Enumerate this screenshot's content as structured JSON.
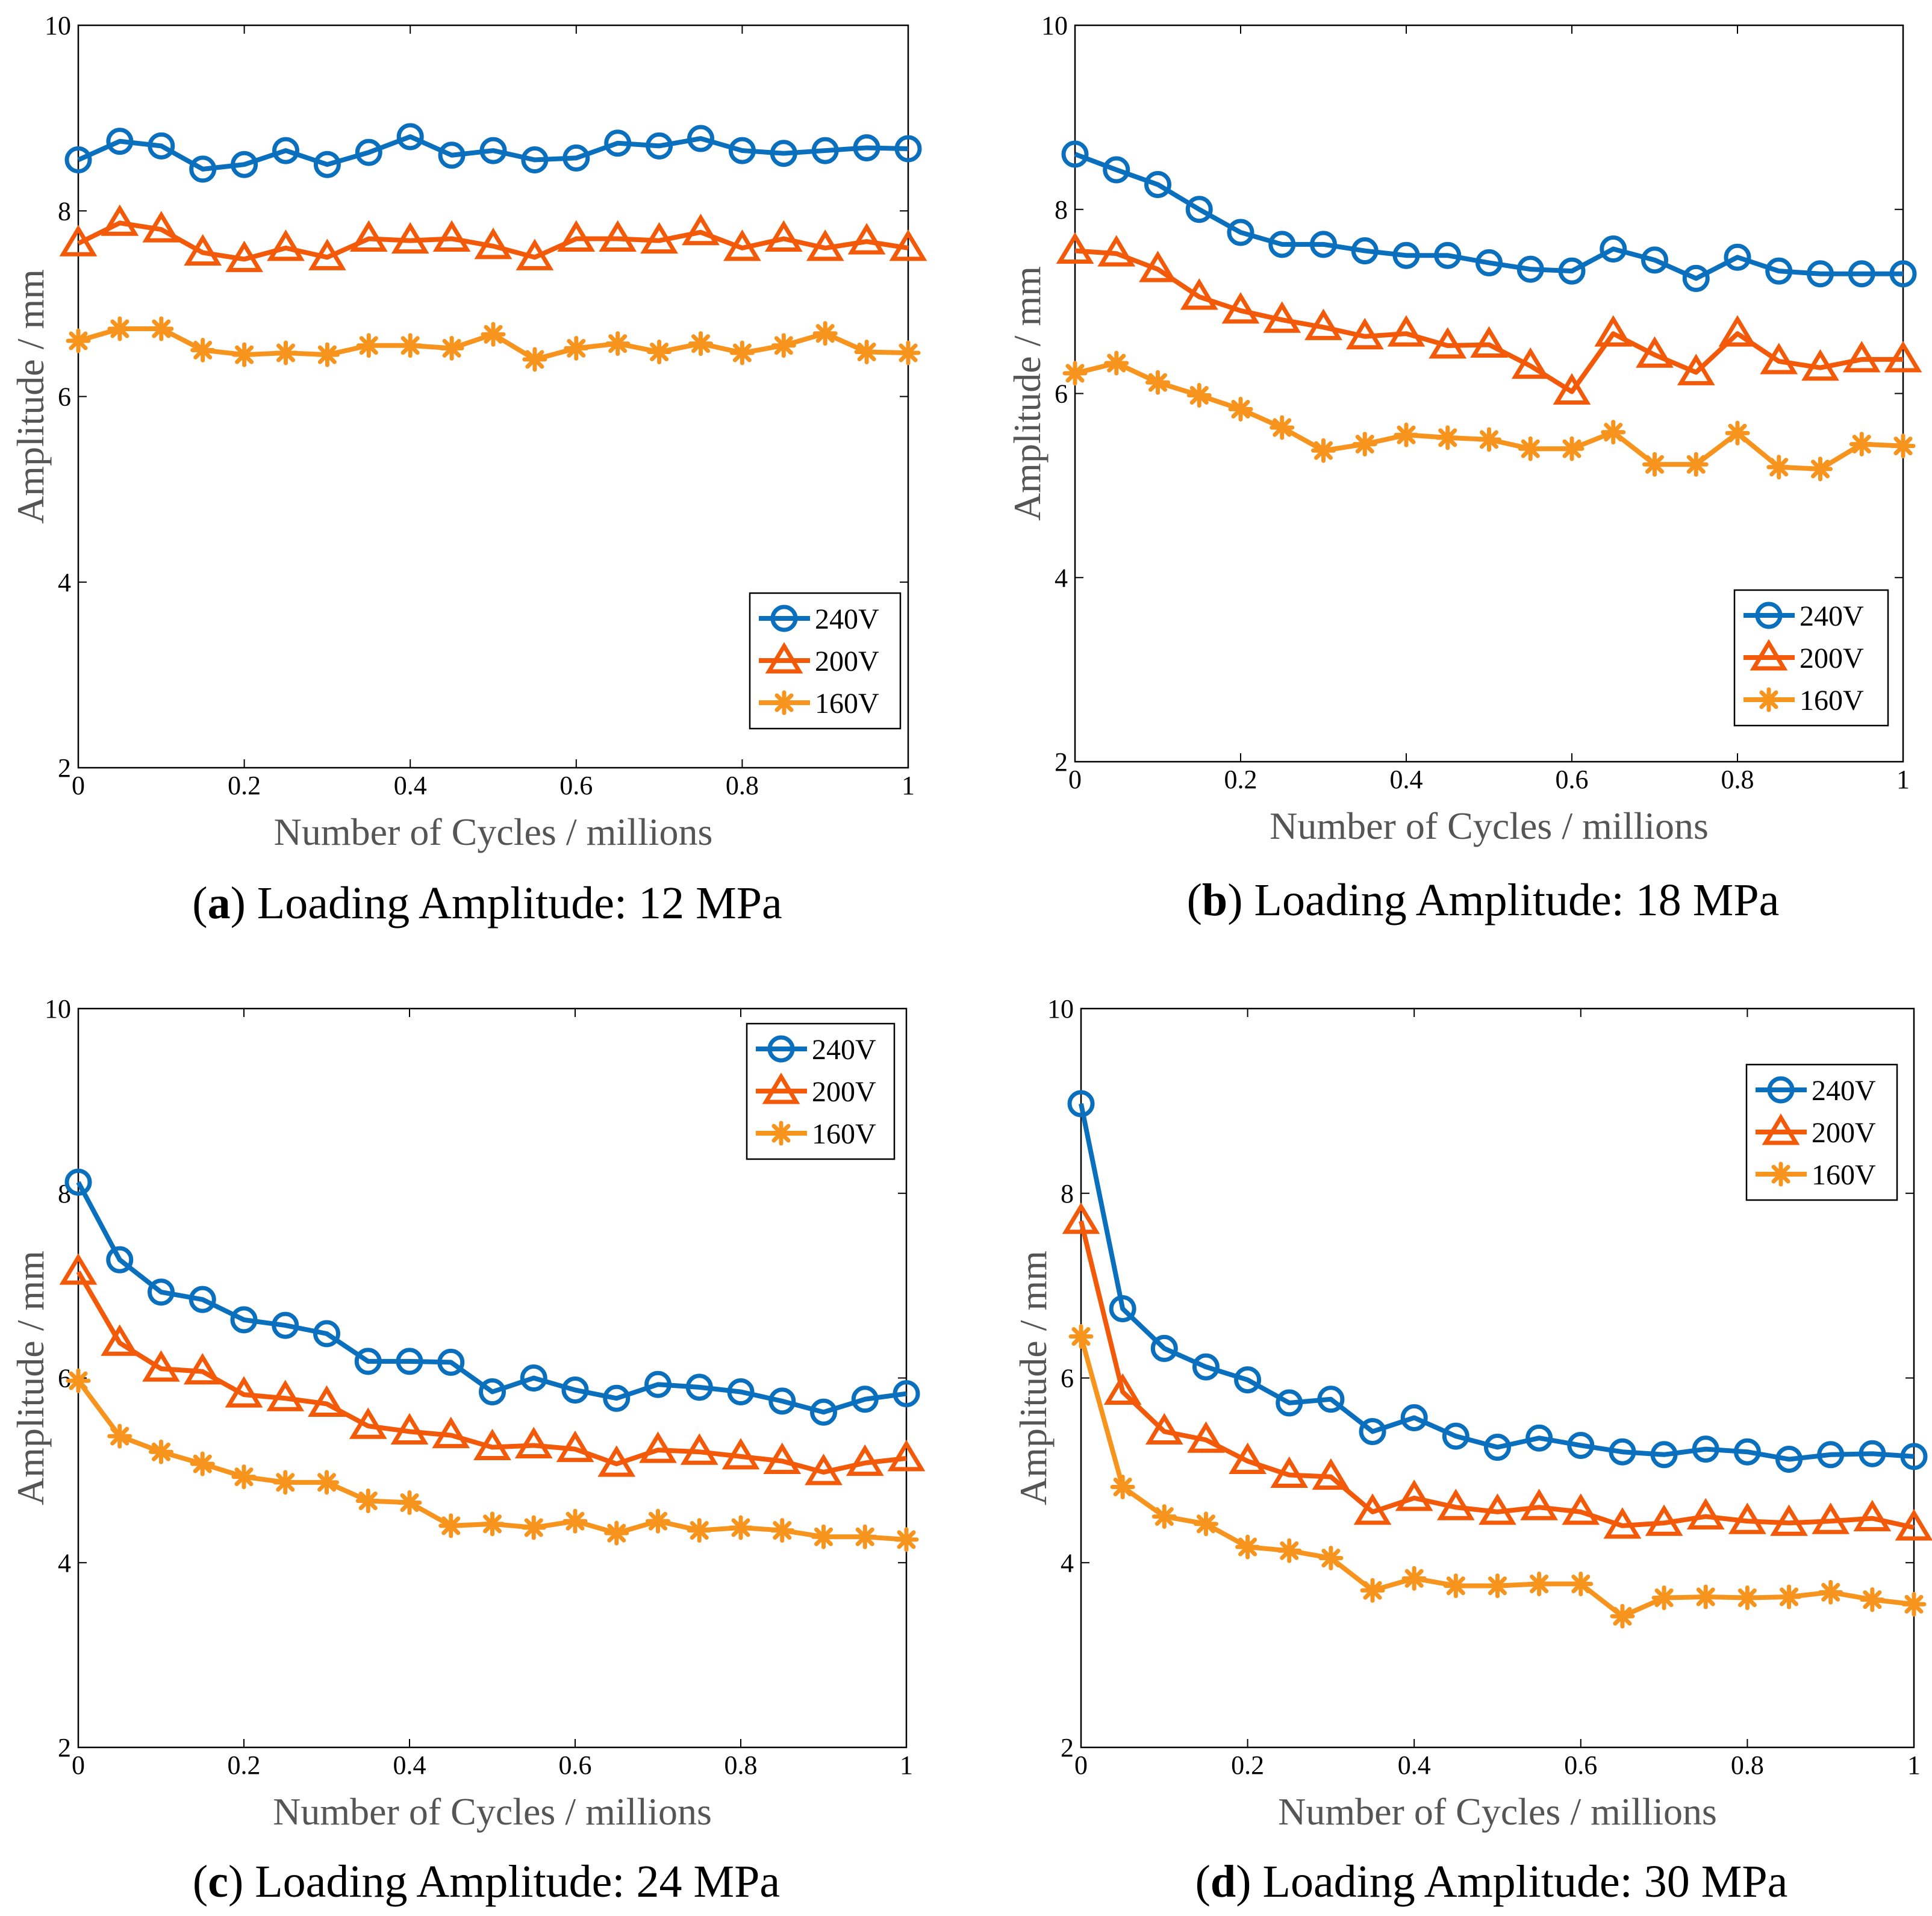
{
  "colors": {
    "240V": "#0a6fbd",
    "200V": "#f25a0a",
    "160V": "#f7941d"
  },
  "chart_data": [
    {
      "type": "line",
      "id": "a",
      "caption_letter": "a",
      "caption_text": "Loading Amplitude: 12 MPa",
      "xlabel": "Number of Cycles / millions",
      "ylabel": "Amplitude / mm",
      "xlim": [
        0,
        1
      ],
      "ylim": [
        2,
        10
      ],
      "xticks": [
        "0",
        "0.2",
        "0.4",
        "0.6",
        "0.8",
        "1"
      ],
      "yticks": [
        "2",
        "4",
        "6",
        "8",
        "10"
      ],
      "legend_position": "bottom-right",
      "x": [
        0,
        0.05,
        0.1,
        0.15,
        0.2,
        0.25,
        0.3,
        0.35,
        0.4,
        0.45,
        0.5,
        0.55,
        0.6,
        0.65,
        0.7,
        0.75,
        0.8,
        0.85,
        0.9,
        0.95,
        1
      ],
      "series": [
        {
          "name": "240V",
          "marker": "circle",
          "values": [
            8.55,
            8.75,
            8.7,
            8.45,
            8.5,
            8.65,
            8.5,
            8.63,
            8.8,
            8.6,
            8.65,
            8.55,
            8.57,
            8.73,
            8.7,
            8.78,
            8.65,
            8.62,
            8.65,
            8.68,
            8.67
          ]
        },
        {
          "name": "200V",
          "marker": "triangle",
          "values": [
            7.65,
            7.87,
            7.8,
            7.55,
            7.48,
            7.6,
            7.5,
            7.7,
            7.68,
            7.7,
            7.62,
            7.5,
            7.7,
            7.7,
            7.68,
            7.77,
            7.6,
            7.7,
            7.6,
            7.67,
            7.6
          ]
        },
        {
          "name": "160V",
          "marker": "asterisk",
          "values": [
            6.6,
            6.73,
            6.73,
            6.5,
            6.45,
            6.47,
            6.45,
            6.55,
            6.55,
            6.52,
            6.67,
            6.4,
            6.52,
            6.57,
            6.48,
            6.57,
            6.47,
            6.55,
            6.68,
            6.48,
            6.47
          ]
        }
      ]
    },
    {
      "type": "line",
      "id": "b",
      "caption_letter": "b",
      "caption_text": "Loading Amplitude: 18 MPa",
      "xlabel": "Number of Cycles / millions",
      "ylabel": "Amplitude / mm",
      "xlim": [
        0,
        1
      ],
      "ylim": [
        2,
        10
      ],
      "xticks": [
        "0",
        "0.2",
        "0.4",
        "0.6",
        "0.8",
        "1"
      ],
      "yticks": [
        "2",
        "4",
        "6",
        "8",
        "10"
      ],
      "legend_position": "bottom-right",
      "x": [
        0,
        0.05,
        0.1,
        0.15,
        0.2,
        0.25,
        0.3,
        0.35,
        0.4,
        0.45,
        0.5,
        0.55,
        0.6,
        0.65,
        0.7,
        0.75,
        0.8,
        0.85,
        0.9,
        0.95,
        1
      ],
      "series": [
        {
          "name": "240V",
          "marker": "circle",
          "values": [
            8.6,
            8.43,
            8.27,
            8.0,
            7.75,
            7.62,
            7.62,
            7.55,
            7.5,
            7.5,
            7.42,
            7.35,
            7.33,
            7.57,
            7.45,
            7.25,
            7.48,
            7.33,
            7.3,
            7.3,
            7.3
          ]
        },
        {
          "name": "200V",
          "marker": "triangle",
          "values": [
            7.55,
            7.52,
            7.35,
            7.05,
            6.9,
            6.8,
            6.72,
            6.62,
            6.65,
            6.52,
            6.53,
            6.3,
            6.02,
            6.65,
            6.42,
            6.23,
            6.65,
            6.35,
            6.28,
            6.37,
            6.37
          ]
        },
        {
          "name": "160V",
          "marker": "asterisk",
          "values": [
            6.22,
            6.33,
            6.12,
            5.98,
            5.83,
            5.63,
            5.38,
            5.45,
            5.55,
            5.52,
            5.5,
            5.4,
            5.4,
            5.58,
            5.23,
            5.23,
            5.57,
            5.2,
            5.18,
            5.45,
            5.43
          ]
        }
      ]
    },
    {
      "type": "line",
      "id": "c",
      "caption_letter": "c",
      "caption_text": "Loading Amplitude: 24 MPa",
      "xlabel": "Number of Cycles / millions",
      "ylabel": "Amplitude / mm",
      "xlim": [
        0,
        1
      ],
      "ylim": [
        2,
        10
      ],
      "xticks": [
        "0",
        "0.2",
        "0.4",
        "0.6",
        "0.8",
        "1"
      ],
      "yticks": [
        "2",
        "4",
        "6",
        "8",
        "10"
      ],
      "legend_position": "top-right",
      "x": [
        0,
        0.05,
        0.1,
        0.15,
        0.2,
        0.25,
        0.3,
        0.35,
        0.4,
        0.45,
        0.5,
        0.55,
        0.6,
        0.65,
        0.7,
        0.75,
        0.8,
        0.85,
        0.9,
        0.95,
        1
      ],
      "series": [
        {
          "name": "240V",
          "marker": "circle",
          "values": [
            8.12,
            7.28,
            6.93,
            6.85,
            6.63,
            6.57,
            6.48,
            6.18,
            6.18,
            6.17,
            5.85,
            6.0,
            5.87,
            5.78,
            5.93,
            5.9,
            5.85,
            5.75,
            5.63,
            5.77,
            5.83
          ]
        },
        {
          "name": "200V",
          "marker": "triangle",
          "values": [
            7.15,
            6.38,
            6.1,
            6.07,
            5.82,
            5.78,
            5.72,
            5.48,
            5.42,
            5.38,
            5.25,
            5.27,
            5.23,
            5.07,
            5.22,
            5.2,
            5.15,
            5.1,
            4.98,
            5.08,
            5.13
          ]
        },
        {
          "name": "160V",
          "marker": "asterisk",
          "values": [
            5.97,
            5.37,
            5.2,
            5.07,
            4.93,
            4.87,
            4.87,
            4.67,
            4.65,
            4.4,
            4.42,
            4.38,
            4.45,
            4.32,
            4.45,
            4.35,
            4.38,
            4.35,
            4.28,
            4.28,
            4.25
          ]
        }
      ]
    },
    {
      "type": "line",
      "id": "d",
      "caption_letter": "d",
      "caption_text": "Loading Amplitude: 30 MPa",
      "xlabel": "Number of Cycles / millions",
      "ylabel": "Amplitude / mm",
      "xlim": [
        0,
        1
      ],
      "ylim": [
        2,
        10
      ],
      "xticks": [
        "0",
        "0.2",
        "0.4",
        "0.6",
        "0.8",
        "1"
      ],
      "yticks": [
        "2",
        "4",
        "6",
        "8",
        "10"
      ],
      "legend_position": "top-right",
      "x": [
        0,
        0.05,
        0.1,
        0.15,
        0.2,
        0.25,
        0.3,
        0.35,
        0.4,
        0.45,
        0.5,
        0.55,
        0.6,
        0.65,
        0.7,
        0.75,
        0.8,
        0.85,
        0.9,
        0.95,
        1
      ],
      "series": [
        {
          "name": "240V",
          "marker": "circle",
          "values": [
            8.97,
            6.75,
            6.32,
            6.12,
            5.98,
            5.73,
            5.77,
            5.42,
            5.57,
            5.37,
            5.25,
            5.35,
            5.27,
            5.2,
            5.17,
            5.23,
            5.2,
            5.12,
            5.17,
            5.18,
            5.15
          ]
        },
        {
          "name": "200V",
          "marker": "triangle",
          "values": [
            7.7,
            5.85,
            5.42,
            5.33,
            5.1,
            4.95,
            4.93,
            4.55,
            4.7,
            4.6,
            4.55,
            4.6,
            4.55,
            4.4,
            4.43,
            4.5,
            4.45,
            4.43,
            4.45,
            4.48,
            4.38
          ]
        },
        {
          "name": "160V",
          "marker": "asterisk",
          "values": [
            6.45,
            4.82,
            4.5,
            4.42,
            4.17,
            4.13,
            4.05,
            3.7,
            3.83,
            3.75,
            3.75,
            3.77,
            3.77,
            3.42,
            3.62,
            3.63,
            3.62,
            3.63,
            3.68,
            3.6,
            3.55
          ]
        }
      ]
    }
  ]
}
